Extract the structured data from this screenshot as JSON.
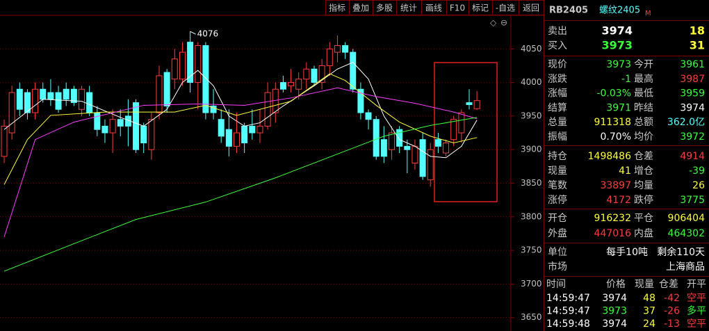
{
  "toolbar": [
    "指标",
    "叠加",
    "多股",
    "统计",
    "画线",
    "F10",
    "标记",
    "-自选",
    "返回"
  ],
  "chart_data": {
    "type": "candlestick",
    "up_color": "#ff3c3c",
    "down_color": "#54ffff",
    "grid": true,
    "ylim": [
      3630,
      4100
    ],
    "yticks": [
      3650,
      3700,
      3750,
      3800,
      3850,
      3900,
      3950,
      4000,
      4050
    ],
    "annotation": 4076,
    "open": [
      3890,
      3925,
      3990,
      3985,
      3955,
      3990,
      3985,
      3985,
      3990,
      3990,
      3960,
      3985,
      3955,
      3935,
      3925,
      3945,
      3950,
      3970,
      3935,
      3900,
      3955,
      4015,
      4005,
      4005,
      4060,
      4000,
      4055,
      3965,
      3945,
      3930,
      3905,
      3935,
      3935,
      3925,
      3935,
      3955,
      4000,
      3995,
      3990,
      4005,
      4020,
      4000,
      4025,
      4045,
      4055,
      4045,
      3990,
      3955,
      3945,
      3915,
      3900,
      3930,
      3905,
      3880,
      3915,
      3855,
      3915,
      3895,
      3915,
      3925,
      3970,
      3961
    ],
    "high": [
      3945,
      3995,
      4000,
      3990,
      4000,
      4000,
      4005,
      3995,
      4000,
      3995,
      3995,
      3995,
      3965,
      3945,
      3960,
      3960,
      3975,
      3975,
      3940,
      3955,
      4025,
      4020,
      4050,
      4060,
      4076,
      4060,
      4060,
      3990,
      3960,
      3960,
      3955,
      3940,
      3960,
      3960,
      4000,
      4000,
      4010,
      4020,
      4015,
      4030,
      4025,
      4035,
      4060,
      4070,
      4060,
      4050,
      4000,
      3960,
      3950,
      3935,
      3935,
      3935,
      3915,
      3915,
      3925,
      3910,
      3925,
      3915,
      3950,
      3960,
      3990,
      3987
    ],
    "low": [
      3880,
      3915,
      3950,
      3945,
      3945,
      3970,
      3965,
      3955,
      3965,
      3965,
      3950,
      3950,
      3920,
      3910,
      3895,
      3920,
      3905,
      3895,
      3895,
      3885,
      3945,
      3955,
      3990,
      3995,
      3985,
      3960,
      3945,
      3945,
      3910,
      3890,
      3895,
      3895,
      3915,
      3910,
      3930,
      3940,
      3985,
      3985,
      3975,
      3990,
      3995,
      3990,
      4010,
      4030,
      4035,
      3985,
      3945,
      3930,
      3885,
      3880,
      3885,
      3895,
      3865,
      3870,
      3855,
      3845,
      3895,
      3890,
      3905,
      3910,
      3960,
      3959
    ],
    "close": [
      3935,
      3985,
      3960,
      3955,
      3990,
      3975,
      3975,
      3960,
      3975,
      3970,
      3990,
      3955,
      3930,
      3925,
      3945,
      3935,
      3935,
      3900,
      3910,
      3945,
      4010,
      3965,
      4035,
      4045,
      4000,
      4055,
      3955,
      3955,
      3920,
      3905,
      3925,
      3910,
      3925,
      3935,
      3985,
      3990,
      3990,
      4000,
      4005,
      4020,
      4000,
      4025,
      4050,
      4055,
      4045,
      3990,
      3955,
      3945,
      3890,
      3890,
      3925,
      3905,
      3900,
      3905,
      3860,
      3900,
      3905,
      3910,
      3945,
      3955,
      3967,
      3973
    ],
    "lines": [
      {
        "color": "#ffffff",
        "x": [
          0,
          5,
          10,
          15,
          18,
          21,
          23,
          25,
          27,
          29,
          31,
          33,
          36,
          40,
          43,
          45,
          47,
          49,
          51,
          53,
          55,
          57,
          59,
          61
        ],
        "values": [
          3930,
          3975,
          3972,
          3948,
          3935,
          3960,
          4000,
          4018,
          3995,
          3950,
          3935,
          3940,
          3965,
          3995,
          4020,
          4030,
          4005,
          3950,
          3915,
          3905,
          3890,
          3888,
          3905,
          3944
        ]
      },
      {
        "color": "#ffff3c",
        "x": [
          0,
          3,
          6,
          13,
          22,
          26,
          30,
          37,
          42,
          44,
          48,
          51,
          55,
          58,
          61
        ],
        "values": [
          3848,
          3915,
          3951,
          3956,
          3956,
          3966,
          3951,
          3972,
          4013,
          4003,
          3966,
          3941,
          3920,
          3910,
          3918
        ]
      },
      {
        "color": "#ff3cff",
        "x": [
          0,
          4,
          9,
          18,
          25,
          31,
          37,
          43,
          48,
          53,
          58,
          61
        ],
        "values": [
          3770,
          3915,
          3941,
          3966,
          3968,
          3966,
          3977,
          3992,
          3979,
          3969,
          3956,
          3946
        ]
      },
      {
        "color": "#3cff3c",
        "x": [
          0,
          9,
          17,
          26,
          35,
          42,
          49,
          55,
          61
        ],
        "values": [
          3719,
          3760,
          3796,
          3822,
          3858,
          3889,
          3920,
          3936,
          3948
        ]
      }
    ]
  },
  "quote": {
    "symbol": "RB2405",
    "name": "螺纹2405",
    "flag": "M",
    "book": [
      [
        "卖出",
        "3974",
        "18"
      ],
      [
        "买入",
        "3973",
        "31"
      ]
    ],
    "groups": [
      [
        [
          "现价",
          "3973",
          "今开",
          "3961"
        ],
        [
          "涨跌",
          "-1",
          "最高",
          "3987"
        ],
        [
          "涨幅",
          "-0.03%",
          "最低",
          "3959"
        ],
        [
          "结算",
          "3971",
          "昨结",
          "3974"
        ],
        [
          "总量",
          "911318",
          "总额",
          "362.0亿"
        ],
        [
          "振幅",
          "0.70%",
          "均价",
          "3972"
        ]
      ],
      [
        [
          "持仓",
          "1498486",
          "仓差",
          "4914"
        ],
        [
          "现量",
          "41",
          "增仓",
          "-39"
        ],
        [
          "笔数",
          "33897",
          "均量",
          "26"
        ],
        [
          "涨停",
          "4172",
          "跌停",
          "3775"
        ]
      ],
      [
        [
          "开仓",
          "916232",
          "平仓",
          "906404"
        ],
        [
          "外盘",
          "447016",
          "内盘",
          "464302"
        ]
      ],
      [
        [
          "单位",
          "每手10吨",
          "剩余110天"
        ],
        [
          "市场",
          "上海商品"
        ]
      ]
    ],
    "ticks_header": [
      "时间",
      "价格",
      "现量",
      "仓差",
      "开平"
    ],
    "ticks": [
      [
        "14:59:47",
        "3974",
        "48",
        "-42",
        "空平"
      ],
      [
        "14:59:47",
        "3973",
        "37",
        "-26",
        "多平"
      ],
      [
        "14:59:48",
        "3974",
        "24",
        "-13",
        "空平"
      ]
    ]
  }
}
